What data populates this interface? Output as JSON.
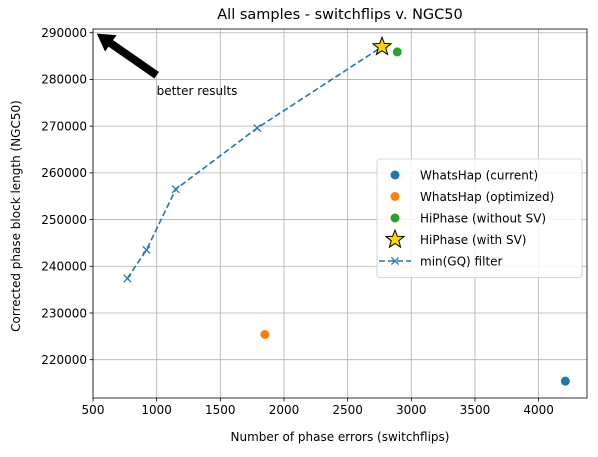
{
  "chart_data": {
    "type": "scatter",
    "title": "All samples - switchflips v. NGC50",
    "xlabel": "Number of phase errors (switchflips)",
    "ylabel": "Corrected phase block length (NGC50)",
    "xlim": [
      500,
      4380
    ],
    "ylim": [
      211800,
      290800
    ],
    "xticks": [
      500,
      1000,
      1500,
      2000,
      2500,
      3000,
      3500,
      4000
    ],
    "yticks": [
      220000,
      230000,
      240000,
      250000,
      260000,
      270000,
      280000,
      290000
    ],
    "grid": true,
    "legend_position": "center-right",
    "series": [
      {
        "name": "WhatsHap (current)",
        "marker": "circle",
        "color": "#1f77b4",
        "points": [
          {
            "x": 4210,
            "y": 215400
          }
        ]
      },
      {
        "name": "WhatsHap (optimized)",
        "marker": "circle",
        "color": "#ff7f0e",
        "points": [
          {
            "x": 1850,
            "y": 225400
          }
        ]
      },
      {
        "name": "HiPhase (without SV)",
        "marker": "circle",
        "color": "#2ca02c",
        "points": [
          {
            "x": 2890,
            "y": 285900
          }
        ]
      },
      {
        "name": "HiPhase (with SV)",
        "marker": "star",
        "color": "#ffd700",
        "points": [
          {
            "x": 2770,
            "y": 287000
          }
        ]
      },
      {
        "name": "min(GQ) filter",
        "marker": "x",
        "line": "dashed",
        "color": "#1f77b4",
        "points": [
          {
            "x": 770,
            "y": 237400
          },
          {
            "x": 920,
            "y": 243500
          },
          {
            "x": 1150,
            "y": 256500
          },
          {
            "x": 1790,
            "y": 269600
          },
          {
            "x": 2770,
            "y": 287000
          }
        ]
      }
    ],
    "annotation": {
      "text": "better results",
      "text_x": 1000,
      "text_y": 277500,
      "arrow_from": [
        1000,
        280900
      ],
      "arrow_to": [
        530,
        289800
      ]
    }
  }
}
